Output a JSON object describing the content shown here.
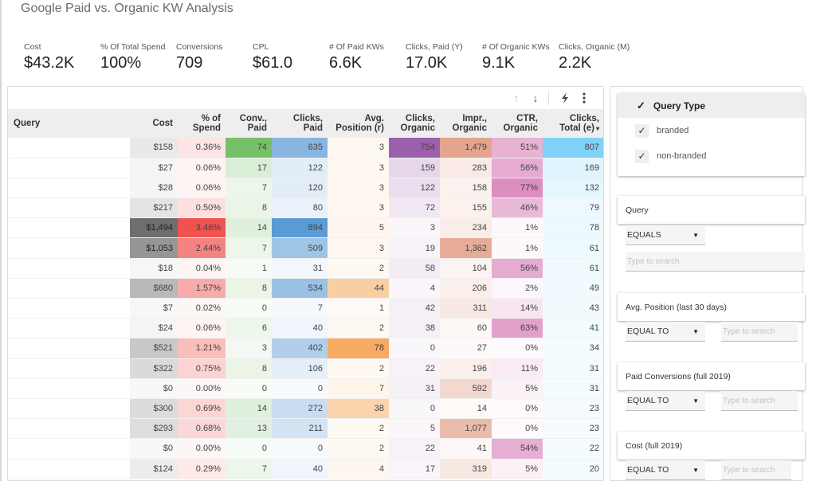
{
  "title": "Google Paid vs. Organic KW Analysis",
  "kpis": [
    {
      "label": "Cost",
      "value": "$43.2K"
    },
    {
      "label": "% Of Total Spend",
      "value": "100%"
    },
    {
      "label": "Conversions",
      "value": "709"
    },
    {
      "label": "CPL",
      "value": "$61.0"
    },
    {
      "label": "# Of Paid KWs",
      "value": "6.6K"
    },
    {
      "label": "Clicks, Paid (Y)",
      "value": "17.0K"
    },
    {
      "label": "# Of Organic KWs",
      "value": "9.1K"
    },
    {
      "label": "Clicks, Organic (M)",
      "value": "2.2K"
    }
  ],
  "table": {
    "toolbar": {
      "sort_up_icon": "arrow-up",
      "sort_down_icon": "arrow-down",
      "explore_icon": "lightning",
      "menu_icon": "vertical-dots"
    },
    "columns": [
      {
        "key": "query",
        "label1": "Query",
        "label2": ""
      },
      {
        "key": "cost",
        "label1": "Cost",
        "label2": ""
      },
      {
        "key": "pct_spend",
        "label1": "% of",
        "label2": "Spend"
      },
      {
        "key": "conv_paid",
        "label1": "Conv.,",
        "label2": "Paid"
      },
      {
        "key": "clicks_paid",
        "label1": "Clicks,",
        "label2": "Paid"
      },
      {
        "key": "avg_pos",
        "label1": "Avg.",
        "label2": "Position (r)"
      },
      {
        "key": "clicks_org",
        "label1": "Clicks,",
        "label2": "Organic"
      },
      {
        "key": "impr_org",
        "label1": "Impr.,",
        "label2": "Organic"
      },
      {
        "key": "ctr_org",
        "label1": "CTR,",
        "label2": "Organic"
      },
      {
        "key": "clicks_total",
        "label1": "Clicks,",
        "label2": "Total (e)",
        "sorted": "desc"
      }
    ],
    "sort_indicator": "▾",
    "heat_colors": {
      "cost": "#6e6e6e",
      "pct_spend": "#ef5350",
      "conv_paid": "#76c06a",
      "clicks_paid": "#5b9bd5",
      "avg_pos": "#f7ab62",
      "clicks_org": "#9c5fab",
      "impr_org": "#e4a58f",
      "ctr_org": "#dc8ec0",
      "clicks_total": "#7fd2f6"
    },
    "rows": [
      {
        "query": "",
        "cost": "$158",
        "pct_spend": "0.36%",
        "conv_paid": "74",
        "clicks_paid": "635",
        "avg_pos": "3",
        "clicks_org": "754",
        "impr_org": "1,479",
        "ctr_org": "51%",
        "clicks_total": "807"
      },
      {
        "query": "",
        "cost": "$27",
        "pct_spend": "0.06%",
        "conv_paid": "17",
        "clicks_paid": "122",
        "avg_pos": "3",
        "clicks_org": "159",
        "impr_org": "283",
        "ctr_org": "56%",
        "clicks_total": "169"
      },
      {
        "query": "",
        "cost": "$28",
        "pct_spend": "0.06%",
        "conv_paid": "7",
        "clicks_paid": "120",
        "avg_pos": "3",
        "clicks_org": "122",
        "impr_org": "158",
        "ctr_org": "77%",
        "clicks_total": "132"
      },
      {
        "query": "",
        "cost": "$217",
        "pct_spend": "0.50%",
        "conv_paid": "8",
        "clicks_paid": "80",
        "avg_pos": "3",
        "clicks_org": "72",
        "impr_org": "155",
        "ctr_org": "46%",
        "clicks_total": "79"
      },
      {
        "query": "",
        "cost": "$1,494",
        "pct_spend": "3.46%",
        "conv_paid": "14",
        "clicks_paid": "894",
        "avg_pos": "5",
        "clicks_org": "3",
        "impr_org": "234",
        "ctr_org": "1%",
        "clicks_total": "78"
      },
      {
        "query": "",
        "cost": "$1,053",
        "pct_spend": "2.44%",
        "conv_paid": "7",
        "clicks_paid": "509",
        "avg_pos": "3",
        "clicks_org": "19",
        "impr_org": "1,362",
        "ctr_org": "1%",
        "clicks_total": "61"
      },
      {
        "query": "",
        "cost": "$18",
        "pct_spend": "0.04%",
        "conv_paid": "1",
        "clicks_paid": "31",
        "avg_pos": "2",
        "clicks_org": "58",
        "impr_org": "104",
        "ctr_org": "56%",
        "clicks_total": "61"
      },
      {
        "query": "",
        "cost": "$680",
        "pct_spend": "1.57%",
        "conv_paid": "8",
        "clicks_paid": "534",
        "avg_pos": "44",
        "clicks_org": "4",
        "impr_org": "206",
        "ctr_org": "2%",
        "clicks_total": "49"
      },
      {
        "query": "",
        "cost": "$7",
        "pct_spend": "0.02%",
        "conv_paid": "0",
        "clicks_paid": "7",
        "avg_pos": "1",
        "clicks_org": "42",
        "impr_org": "311",
        "ctr_org": "14%",
        "clicks_total": "43"
      },
      {
        "query": "",
        "cost": "$24",
        "pct_spend": "0.06%",
        "conv_paid": "6",
        "clicks_paid": "40",
        "avg_pos": "2",
        "clicks_org": "38",
        "impr_org": "60",
        "ctr_org": "63%",
        "clicks_total": "41"
      },
      {
        "query": "",
        "cost": "$521",
        "pct_spend": "1.21%",
        "conv_paid": "3",
        "clicks_paid": "402",
        "avg_pos": "78",
        "clicks_org": "0",
        "impr_org": "27",
        "ctr_org": "0%",
        "clicks_total": "34"
      },
      {
        "query": "",
        "cost": "$322",
        "pct_spend": "0.75%",
        "conv_paid": "8",
        "clicks_paid": "106",
        "avg_pos": "2",
        "clicks_org": "22",
        "impr_org": "196",
        "ctr_org": "11%",
        "clicks_total": "31"
      },
      {
        "query": "",
        "cost": "$0",
        "pct_spend": "0.00%",
        "conv_paid": "0",
        "clicks_paid": "0",
        "avg_pos": "7",
        "clicks_org": "31",
        "impr_org": "592",
        "ctr_org": "5%",
        "clicks_total": "31"
      },
      {
        "query": "",
        "cost": "$300",
        "pct_spend": "0.69%",
        "conv_paid": "14",
        "clicks_paid": "272",
        "avg_pos": "38",
        "clicks_org": "0",
        "impr_org": "14",
        "ctr_org": "0%",
        "clicks_total": "23"
      },
      {
        "query": "",
        "cost": "$293",
        "pct_spend": "0.68%",
        "conv_paid": "13",
        "clicks_paid": "211",
        "avg_pos": "2",
        "clicks_org": "5",
        "impr_org": "1,077",
        "ctr_org": "0%",
        "clicks_total": "23"
      },
      {
        "query": "",
        "cost": "$0",
        "pct_spend": "0.00%",
        "conv_paid": "0",
        "clicks_paid": "0",
        "avg_pos": "2",
        "clicks_org": "22",
        "impr_org": "41",
        "ctr_org": "54%",
        "clicks_total": "22"
      },
      {
        "query": "",
        "cost": "$124",
        "pct_spend": "0.29%",
        "conv_paid": "7",
        "clicks_paid": "40",
        "avg_pos": "4",
        "clicks_org": "17",
        "impr_org": "319",
        "ctr_org": "5%",
        "clicks_total": "20"
      }
    ]
  },
  "filters": {
    "query_type": {
      "title": "Query Type",
      "options": [
        {
          "label": "branded",
          "checked": true
        },
        {
          "label": "non-branded",
          "checked": true
        }
      ]
    },
    "query": {
      "label": "Query",
      "operator": "EQUALS",
      "placeholder": "Type to search"
    },
    "avg_position": {
      "label": "Avg. Position (last 30 days)",
      "operator": "EQUAL TO",
      "placeholder": "Type to search"
    },
    "paid_conversions": {
      "label": "Paid Conversions (full 2019)",
      "operator": "EQUAL TO",
      "placeholder": "Type to search"
    },
    "cost": {
      "label": "Cost (full 2019)",
      "operator": "EQUAL TO",
      "placeholder": "Type to search"
    }
  }
}
